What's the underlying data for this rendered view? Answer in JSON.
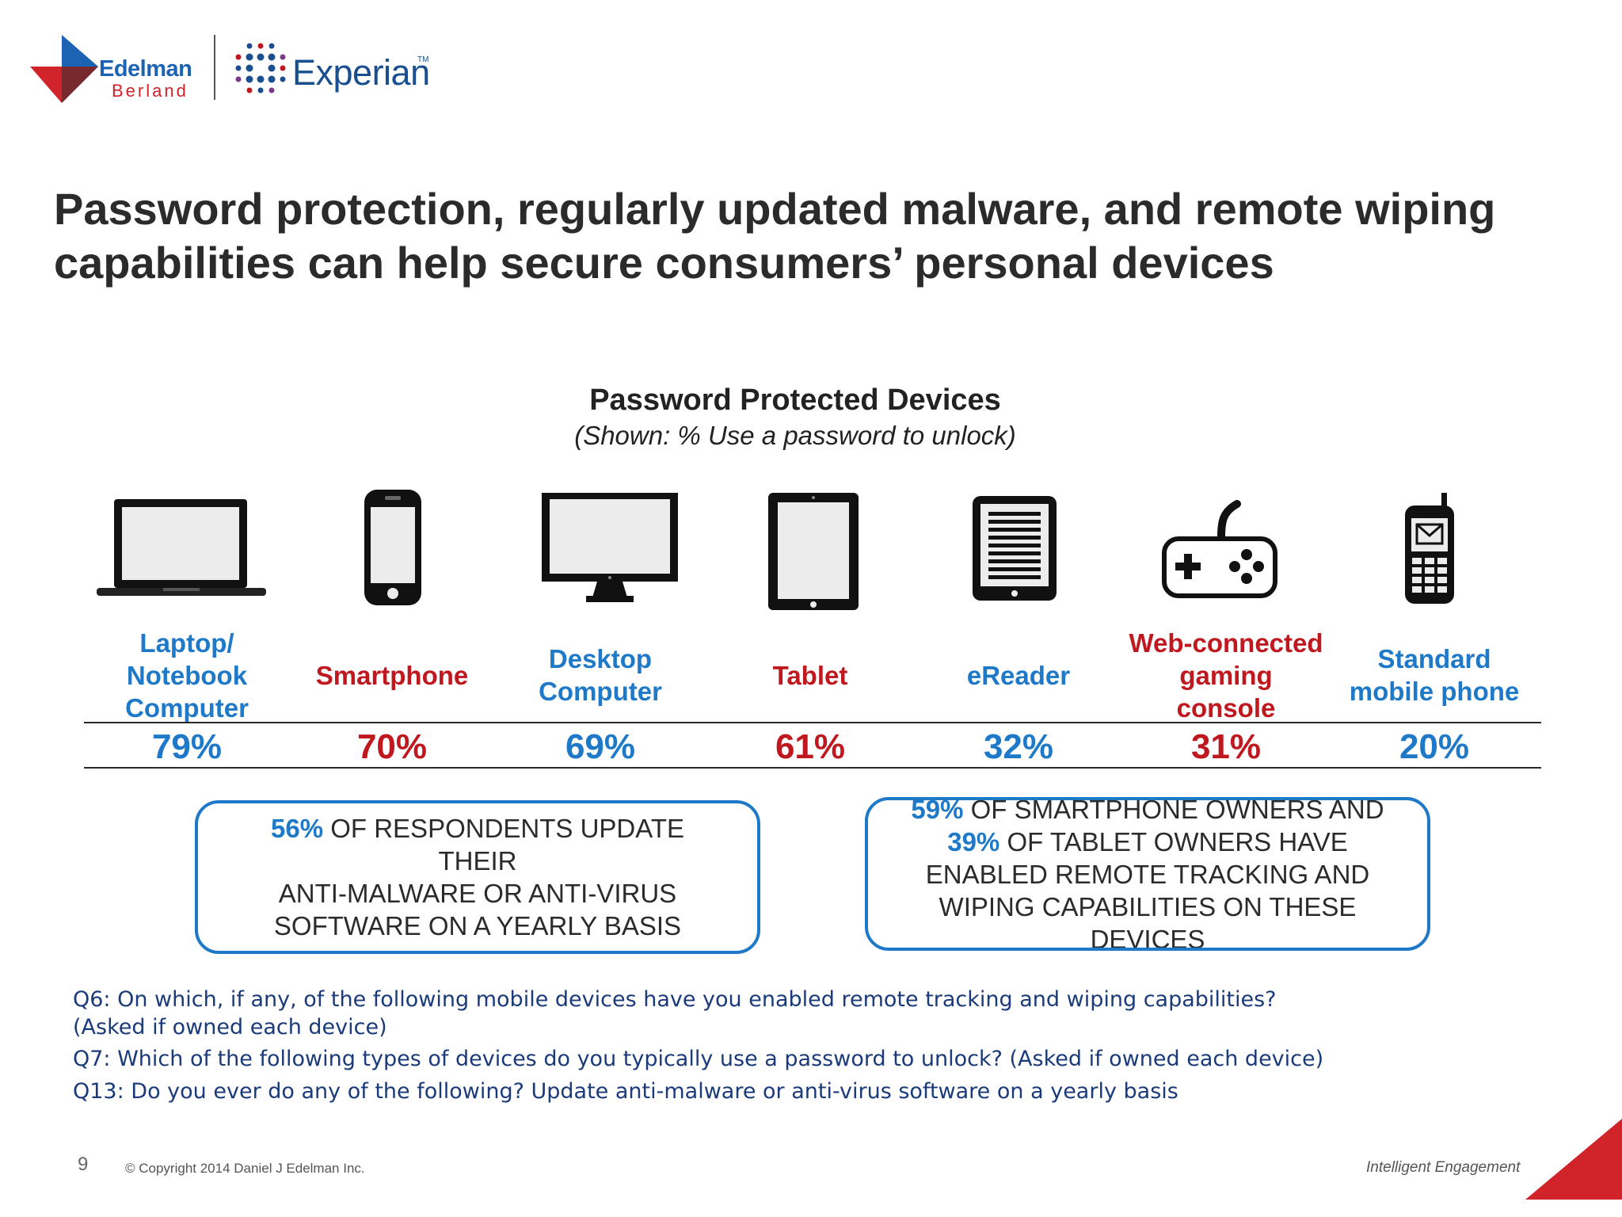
{
  "logos": {
    "edelman": {
      "name": "Edelman",
      "sub": "Berland"
    },
    "experian": {
      "name": "Experian",
      "tm": "TM"
    }
  },
  "headline": {
    "line1": "Password protection, regularly updated malware, and remote wiping",
    "line2": "capabilities can help secure consumers’ personal devices"
  },
  "chart_data": {
    "type": "table",
    "title": "Password Protected Devices",
    "subtitle": "(Shown: % Use a password to unlock)",
    "categories": [
      "Laptop/ Notebook Computer",
      "Smartphone",
      "Desktop Computer",
      "Tablet",
      "eReader",
      "Web-connected gaming console",
      "Standard mobile phone"
    ],
    "values": [
      79,
      70,
      69,
      61,
      32,
      31,
      20
    ],
    "value_labels": [
      "79%",
      "70%",
      "69%",
      "61%",
      "32%",
      "31%",
      "20%"
    ],
    "label_colors": [
      "#1e79c8",
      "#c0181f",
      "#1e79c8",
      "#c0181f",
      "#1e79c8",
      "#c0181f",
      "#1e79c8"
    ],
    "icons": [
      "laptop-icon",
      "smartphone-icon",
      "desktop-monitor-icon",
      "tablet-icon",
      "ereader-icon",
      "game-controller-icon",
      "feature-phone-icon"
    ]
  },
  "devices": [
    {
      "label_lines": [
        "Laptop/",
        "Notebook",
        "Computer"
      ],
      "value": "79%"
    },
    {
      "label_lines": [
        "Smartphone"
      ],
      "value": "70%"
    },
    {
      "label_lines": [
        "Desktop",
        "Computer"
      ],
      "value": "69%"
    },
    {
      "label_lines": [
        "Tablet"
      ],
      "value": "61%"
    },
    {
      "label_lines": [
        "eReader"
      ],
      "value": "32%"
    },
    {
      "label_lines": [
        "Web-connected",
        "gaming",
        "console"
      ],
      "value": "31%"
    },
    {
      "label_lines": [
        "Standard",
        "mobile phone"
      ],
      "value": "20%"
    }
  ],
  "callouts": {
    "left": {
      "highlight": "56%",
      "line1_rest": " OF RESPONDENTS UPDATE",
      "line2": "THEIR",
      "line3": "ANTI-MALWARE OR ANTI-VIRUS",
      "line4": "SOFTWARE ON A YEARLY BASIS"
    },
    "right": {
      "highlight1": "59%",
      "line1_rest": " OF SMARTPHONE OWNERS AND",
      "highlight2": "39%",
      "line2_rest": " OF TABLET OWNERS HAVE",
      "line3": "ENABLED REMOTE TRACKING AND",
      "line4": "WIPING CAPABILITIES ON THESE",
      "line5": "DEVICES"
    }
  },
  "questions": {
    "q6_line1": "Q6: On which, if any, of the following mobile devices have you enabled remote tracking and wiping capabilities?",
    "q6_line2": "(Asked if owned each device)",
    "q7": "Q7: Which of the following types of devices do you typically use a password to unlock? (Asked if owned each device)",
    "q13": "Q13: Do you ever do any of the following? Update anti-malware or anti-virus software on a yearly basis"
  },
  "footer": {
    "page_number": "9",
    "copyright": "© Copyright 2014 Daniel J Edelman Inc.",
    "tagline": "Intelligent Engagement"
  },
  "colors": {
    "blue": "#1e79c8",
    "red": "#c0181f",
    "brand_red": "#d0232a"
  }
}
